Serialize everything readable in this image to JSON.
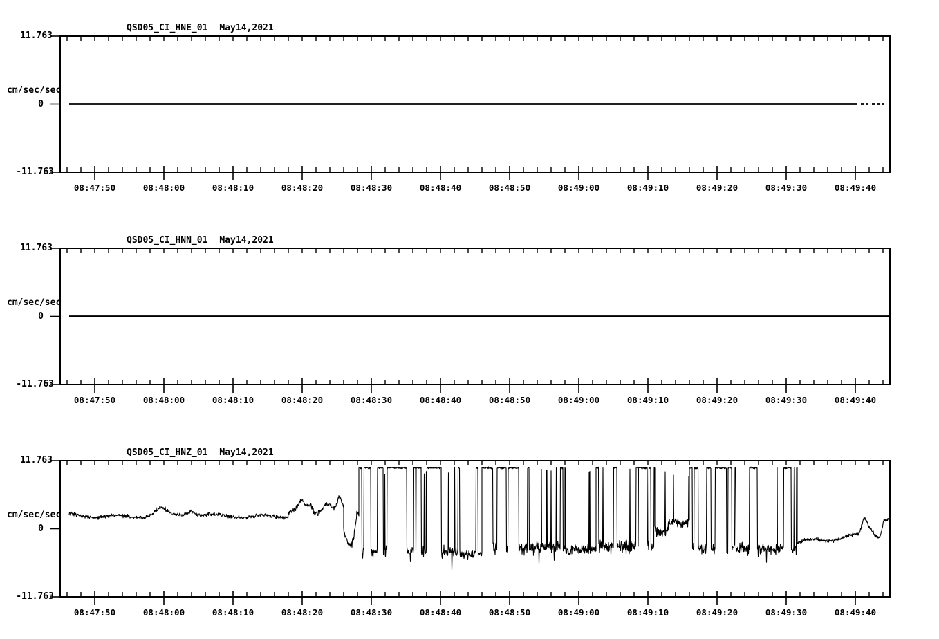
{
  "page": {
    "background": "#ffffff",
    "trace_color": "#000000",
    "frame_color": "#000000"
  },
  "chart_data": [
    {
      "type": "line",
      "title": "QSD05_CI_HNE_01",
      "date_label": "May14,2021",
      "ylabel": "cm/sec/sec",
      "yticks": [
        "11.763",
        "0",
        "-11.763"
      ],
      "ylim": [
        -11.763,
        11.763
      ],
      "x_start": "08:47:45",
      "x_end": "08:49:45",
      "x_span_s": 120,
      "x_minor_interval_s": 2,
      "x_major_interval_s": 10,
      "x_tick_labels": [
        "08:47:50",
        "08:48:00",
        "08:48:10",
        "08:48:20",
        "08:48:30",
        "08:48:40",
        "08:48:50",
        "08:49:00",
        "08:49:10",
        "08:49:20",
        "08:49:30",
        "08:49:40"
      ],
      "grid": false,
      "legend": "none",
      "series": {
        "name": "HNE",
        "mode": "flat",
        "value": 0,
        "t0": 1.3,
        "t1": 119.4,
        "thick_until": 115.3,
        "tail_dots": [
          116.0,
          116.7,
          117.6,
          118.3,
          119.0
        ]
      }
    },
    {
      "type": "line",
      "title": "QSD05_CI_HNN_01",
      "date_label": "May14,2021",
      "ylabel": "cm/sec/sec",
      "yticks": [
        "11.763",
        "0",
        "-11.763"
      ],
      "ylim": [
        -11.763,
        11.763
      ],
      "x_start": "08:47:45",
      "x_end": "08:49:45",
      "x_span_s": 120,
      "x_minor_interval_s": 2,
      "x_major_interval_s": 10,
      "x_tick_labels": [
        "08:47:50",
        "08:48:00",
        "08:48:10",
        "08:48:20",
        "08:48:30",
        "08:48:40",
        "08:48:50",
        "08:49:00",
        "08:49:10",
        "08:49:20",
        "08:49:30",
        "08:49:40"
      ],
      "grid": false,
      "legend": "none",
      "series": {
        "name": "HNN",
        "mode": "flat",
        "value": 0,
        "t0": 1.3,
        "t1": 120.0,
        "thick_until": 120.0,
        "tail_dots": []
      }
    },
    {
      "type": "line",
      "title": "QSD05_CI_HNZ_01",
      "date_label": "May14,2021",
      "ylabel": "cm/sec/sec",
      "yticks": [
        "11.763",
        "0",
        "-11.763"
      ],
      "ylim": [
        -11.763,
        11.763
      ],
      "x_start": "08:47:45",
      "x_end": "08:49:45",
      "x_span_s": 120,
      "x_minor_interval_s": 2,
      "x_major_interval_s": 10,
      "x_tick_labels": [
        "08:47:50",
        "08:48:00",
        "08:48:10",
        "08:48:20",
        "08:48:30",
        "08:48:40",
        "08:48:50",
        "08:49:00",
        "08:49:10",
        "08:49:20",
        "08:49:30",
        "08:49:40"
      ],
      "grid": false,
      "legend": "none",
      "series": {
        "name": "HNZ",
        "mode": "synthetic",
        "seed": 20210514,
        "sample_interval_s": 0.05,
        "clip_level": 10.9,
        "segments": [
          {
            "mode": "noise",
            "t0": 1.3,
            "t1": 33.0,
            "base": 2.25,
            "amp": 0.4,
            "wander": 0.25,
            "bumps": [
              {
                "t": 14.5,
                "h": 1.1,
                "w": 1.2
              },
              {
                "t": 19.0,
                "h": 0.8,
                "w": 0.8
              }
            ]
          },
          {
            "mode": "noise",
            "t0": 33.0,
            "t1": 41.0,
            "base": 2.5,
            "amp": 0.55,
            "wander": 0.5,
            "bumps": [
              {
                "t": 35.0,
                "h": 1.6,
                "w": 0.7
              },
              {
                "t": 36.2,
                "h": 1.2,
                "w": 0.5
              },
              {
                "t": 38.6,
                "h": 2.0,
                "w": 1.0
              },
              {
                "t": 40.4,
                "h": 2.6,
                "w": 0.5
              }
            ]
          },
          {
            "mode": "noise",
            "t0": 41.0,
            "t1": 43.2,
            "base": 1.6,
            "amp": 0.7,
            "wander": 0.3,
            "bumps": [
              {
                "t": 41.9,
                "h": -4.2,
                "w": 0.9
              },
              {
                "t": 43.0,
                "h": 2.5,
                "w": 0.4
              }
            ]
          },
          {
            "mode": "telegraph",
            "t0": 43.2,
            "t1": 57.0,
            "high": 10.5,
            "low": -4.0,
            "lowAmp": 1.2,
            "fracHigh": 0.42,
            "meanHigh": 0.9,
            "spikeDown": -6.4
          },
          {
            "mode": "telegraph",
            "t0": 57.0,
            "t1": 61.0,
            "high": 10.5,
            "low": -4.4,
            "lowAmp": 1.0,
            "fracHigh": 0.08,
            "meanHigh": 0.35,
            "spikeDown": -6.0
          },
          {
            "mode": "telegraph",
            "t0": 61.0,
            "t1": 73.0,
            "high": 10.5,
            "low": -3.2,
            "lowAmp": 1.3,
            "fracHigh": 0.5,
            "meanHigh": 0.8,
            "spikeDown": -6.2
          },
          {
            "mode": "telegraph",
            "t0": 73.0,
            "t1": 77.5,
            "high": 10.5,
            "low": -3.6,
            "lowAmp": 1.1,
            "fracHigh": 0.13,
            "meanHigh": 0.4,
            "spikeDown": -5.8
          },
          {
            "mode": "telegraph",
            "t0": 77.5,
            "t1": 86.0,
            "high": 10.5,
            "low": -3.0,
            "lowAmp": 1.4,
            "fracHigh": 0.45,
            "meanHigh": 0.7,
            "spikeDown": -6.0
          },
          {
            "mode": "noise",
            "t0": 86.0,
            "t1": 91.0,
            "base": 0.5,
            "amp": 1.2,
            "wander": 0.9,
            "spikes": {
              "prob": 0.012,
              "high": 10.4
            },
            "bumps": [
              {
                "t": 88.5,
                "h": 1.8,
                "w": 0.8
              }
            ]
          },
          {
            "mode": "telegraph",
            "t0": 91.0,
            "t1": 106.6,
            "high": 10.5,
            "low": -3.4,
            "lowAmp": 1.2,
            "fracHigh": 0.5,
            "meanHigh": 0.8,
            "spikeDown": -6.0
          },
          {
            "mode": "noise",
            "t0": 106.6,
            "t1": 120.0,
            "base": -2.6,
            "amp": 0.35,
            "wander": 0.4,
            "trend": 1.8,
            "bumps": [
              {
                "t": 116.3,
                "h": 2.6,
                "w": 0.5
              },
              {
                "t": 117.1,
                "h": 1.3,
                "w": 0.7
              },
              {
                "t": 119.2,
                "h": 3.0,
                "w": 0.4
              },
              {
                "t": 119.8,
                "h": 2.6,
                "w": 0.3
              }
            ]
          }
        ]
      }
    }
  ]
}
